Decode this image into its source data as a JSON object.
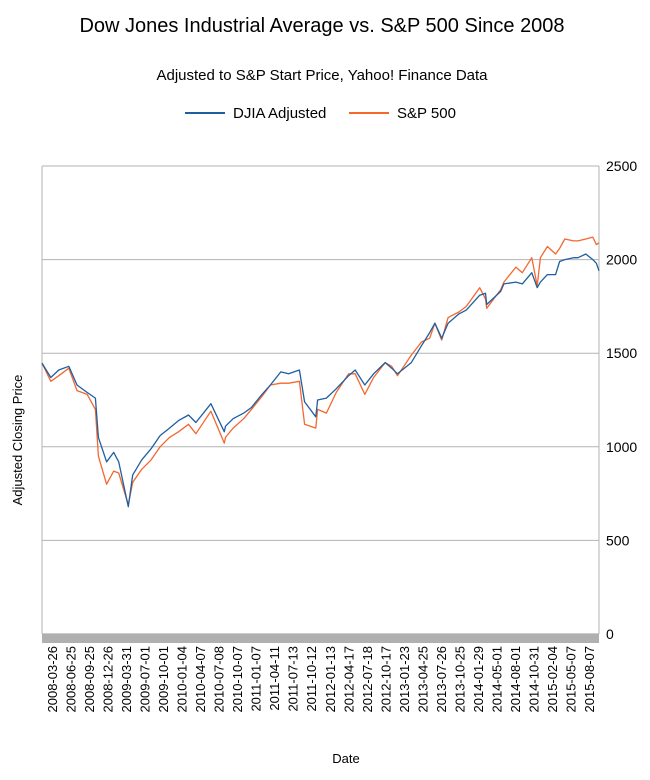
{
  "chart_data": {
    "type": "line",
    "title": "Dow Jones Industrial Average vs. S&P 500 Since 2008",
    "subtitle": "Adjusted to S&P Start Price, Yahoo! Finance Data",
    "xlabel": "Date",
    "ylabel": "Adjusted Closing Price",
    "ylim": [
      0,
      2500
    ],
    "y_ticks": [
      0,
      500,
      1000,
      1500,
      2000,
      2500
    ],
    "y_axis_side": "right",
    "grid": true,
    "legend_position": "top",
    "x_ticks": [
      "2008-03-26",
      "2008-06-25",
      "2008-09-25",
      "2008-12-26",
      "2009-03-31",
      "2009-07-01",
      "2009-10-01",
      "2010-01-04",
      "2010-04-07",
      "2010-07-08",
      "2010-10-07",
      "2011-01-07",
      "2011-04-11",
      "2011-07-13",
      "2011-10-12",
      "2012-01-13",
      "2012-04-17",
      "2012-07-18",
      "2012-10-17",
      "2013-01-23",
      "2013-04-25",
      "2013-07-26",
      "2013-10-25",
      "2014-01-29",
      "2014-05-01",
      "2014-08-01",
      "2014-10-31",
      "2015-02-04",
      "2015-05-07",
      "2015-08-07"
    ],
    "x": [
      "2008-01-02",
      "2008-02-15",
      "2008-03-26",
      "2008-05-15",
      "2008-06-25",
      "2008-08-15",
      "2008-09-25",
      "2008-10-10",
      "2008-11-20",
      "2008-12-26",
      "2009-01-20",
      "2009-03-09",
      "2009-03-31",
      "2009-05-15",
      "2009-07-01",
      "2009-08-15",
      "2009-10-01",
      "2009-11-15",
      "2010-01-04",
      "2010-02-10",
      "2010-04-26",
      "2010-07-02",
      "2010-07-08",
      "2010-08-15",
      "2010-10-07",
      "2010-11-15",
      "2011-01-07",
      "2011-02-18",
      "2011-04-11",
      "2011-05-20",
      "2011-07-13",
      "2011-08-08",
      "2011-10-03",
      "2011-10-12",
      "2011-11-25",
      "2012-01-13",
      "2012-03-15",
      "2012-04-17",
      "2012-06-04",
      "2012-07-18",
      "2012-09-14",
      "2012-10-17",
      "2012-11-15",
      "2013-01-23",
      "2013-03-15",
      "2013-04-25",
      "2013-05-21",
      "2013-06-24",
      "2013-07-26",
      "2013-09-18",
      "2013-10-25",
      "2013-12-31",
      "2014-01-29",
      "2014-02-04",
      "2014-04-15",
      "2014-05-01",
      "2014-06-30",
      "2014-08-01",
      "2014-09-18",
      "2014-10-15",
      "2014-10-31",
      "2014-12-05",
      "2015-01-15",
      "2015-02-04",
      "2015-03-02",
      "2015-04-15",
      "2015-05-07",
      "2015-06-15",
      "2015-07-20",
      "2015-08-07",
      "2015-08-20"
    ],
    "series": [
      {
        "name": "DJIA Adjusted",
        "color": "#1f5fa1",
        "values": [
          1447,
          1370,
          1410,
          1430,
          1330,
          1290,
          1260,
          1050,
          920,
          970,
          920,
          680,
          850,
          930,
          990,
          1060,
          1100,
          1140,
          1170,
          1130,
          1230,
          1080,
          1110,
          1150,
          1180,
          1210,
          1280,
          1330,
          1400,
          1390,
          1410,
          1240,
          1160,
          1250,
          1260,
          1310,
          1380,
          1410,
          1330,
          1390,
          1450,
          1420,
          1390,
          1450,
          1540,
          1610,
          1660,
          1580,
          1660,
          1710,
          1730,
          1810,
          1820,
          1760,
          1830,
          1870,
          1880,
          1870,
          1930,
          1850,
          1880,
          1920,
          1920,
          1990,
          2000,
          2010,
          2010,
          2030,
          2000,
          1980,
          1940
        ]
      },
      {
        "name": "S&P 500",
        "color": "#f4672f",
        "values": [
          1447,
          1350,
          1380,
          1420,
          1300,
          1280,
          1200,
          950,
          800,
          870,
          860,
          690,
          810,
          880,
          930,
          1000,
          1050,
          1080,
          1120,
          1070,
          1190,
          1020,
          1050,
          1100,
          1150,
          1200,
          1270,
          1330,
          1340,
          1340,
          1350,
          1120,
          1100,
          1200,
          1180,
          1290,
          1390,
          1390,
          1280,
          1370,
          1450,
          1430,
          1380,
          1490,
          1560,
          1580,
          1660,
          1570,
          1690,
          1720,
          1750,
          1850,
          1790,
          1740,
          1840,
          1880,
          1960,
          1930,
          2010,
          1860,
          2010,
          2070,
          2030,
          2060,
          2110,
          2100,
          2100,
          2110,
          2120,
          2080,
          2090
        ]
      }
    ]
  }
}
